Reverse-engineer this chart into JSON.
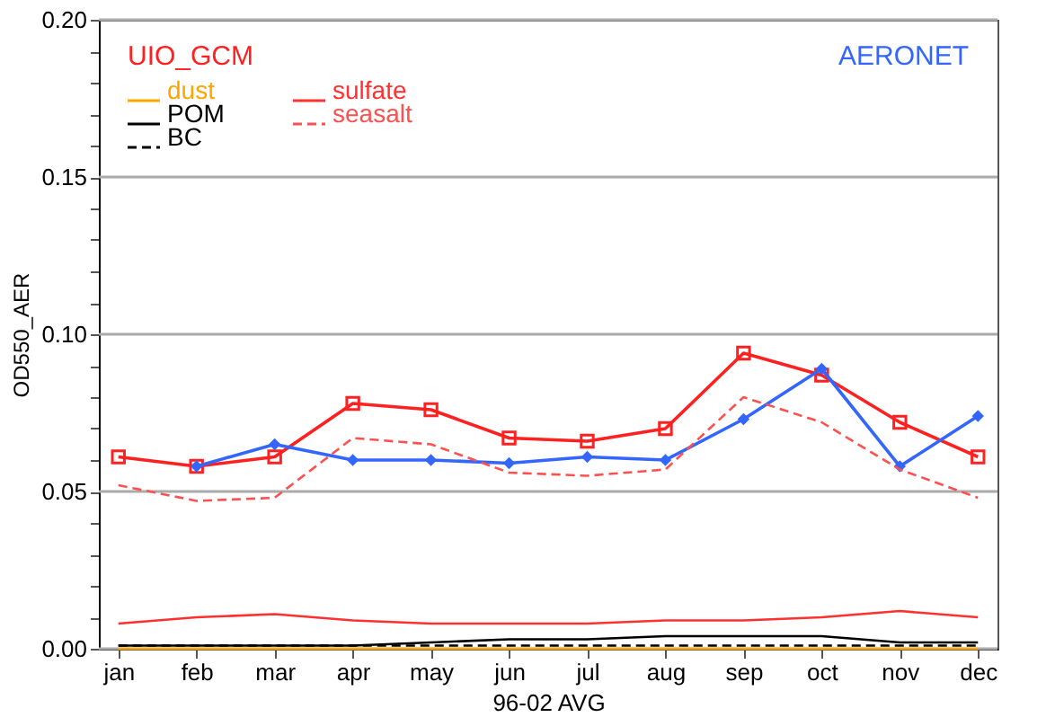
{
  "chart_data": {
    "type": "line",
    "xlabel": "96-02 AVG",
    "ylabel": "OD550_AER",
    "categories": [
      "jan",
      "feb",
      "mar",
      "apr",
      "may",
      "jun",
      "jul",
      "aug",
      "sep",
      "oct",
      "nov",
      "dec"
    ],
    "series": [
      {
        "name": "UIO_GCM",
        "color": "#ff2020",
        "marker": "square",
        "line_style": "solid",
        "values": [
          0.061,
          0.058,
          0.061,
          0.078,
          0.076,
          0.067,
          0.066,
          0.07,
          0.094,
          0.087,
          0.072,
          0.061
        ]
      },
      {
        "name": "AERONET",
        "color": "#3366ff",
        "marker": "diamond",
        "line_style": "solid",
        "values": [
          null,
          0.058,
          0.065,
          0.06,
          0.06,
          0.059,
          0.061,
          0.06,
          0.073,
          0.089,
          0.058,
          0.074
        ]
      },
      {
        "name": "dust",
        "color": "#ffa500",
        "marker": "none",
        "line_style": "solid",
        "values": [
          0,
          0,
          0,
          0,
          0,
          0,
          0,
          0,
          0,
          0,
          0,
          0
        ]
      },
      {
        "name": "sulfate",
        "color": "#ff3030",
        "marker": "none",
        "line_style": "solid",
        "values": [
          0.008,
          0.01,
          0.011,
          0.009,
          0.008,
          0.008,
          0.008,
          0.009,
          0.009,
          0.01,
          0.012,
          0.01
        ]
      },
      {
        "name": "POM",
        "color": "#000000",
        "marker": "none",
        "line_style": "solid",
        "values": [
          0.001,
          0.001,
          0.001,
          0.001,
          0.002,
          0.003,
          0.003,
          0.004,
          0.004,
          0.004,
          0.002,
          0.002
        ]
      },
      {
        "name": "seasalt",
        "color": "#ff5050",
        "marker": "none",
        "line_style": "dashed",
        "values": [
          0.052,
          0.047,
          0.048,
          0.067,
          0.065,
          0.056,
          0.055,
          0.057,
          0.08,
          0.072,
          0.057,
          0.048
        ]
      },
      {
        "name": "BC",
        "color": "#000000",
        "marker": "none",
        "line_style": "dashed",
        "values": [
          0.001,
          0.001,
          0.001,
          0.001,
          0.001,
          0.001,
          0.001,
          0.001,
          0.001,
          0.001,
          0.001,
          0.001
        ]
      }
    ],
    "ylim": [
      0,
      0.2
    ],
    "yticks": [
      {
        "value": 0,
        "label": "0.00"
      },
      {
        "value": 0.01,
        "label": null
      },
      {
        "value": 0.02,
        "label": null
      },
      {
        "value": 0.03,
        "label": null
      },
      {
        "value": 0.04,
        "label": null
      },
      {
        "value": 0.05,
        "label": "0.05"
      },
      {
        "value": 0.06,
        "label": null
      },
      {
        "value": 0.07,
        "label": null
      },
      {
        "value": 0.08,
        "label": null
      },
      {
        "value": 0.09,
        "label": null
      },
      {
        "value": 0.1,
        "label": "0.10"
      },
      {
        "value": 0.11,
        "label": null
      },
      {
        "value": 0.12,
        "label": null
      },
      {
        "value": 0.13,
        "label": null
      },
      {
        "value": 0.14,
        "label": null
      },
      {
        "value": 0.15,
        "label": "0.15"
      },
      {
        "value": 0.16,
        "label": null
      },
      {
        "value": 0.17,
        "label": null
      },
      {
        "value": 0.18,
        "label": null
      },
      {
        "value": 0.19,
        "label": null
      },
      {
        "value": 0.2,
        "label": "0.20"
      }
    ],
    "grid": "y",
    "legend": "top"
  }
}
